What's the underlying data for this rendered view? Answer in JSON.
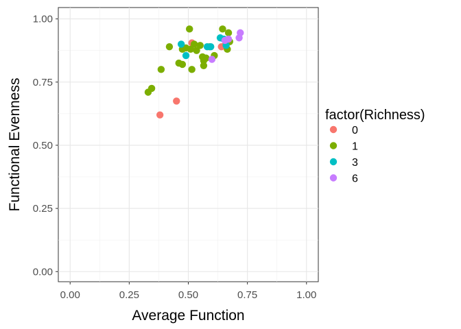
{
  "chart_data": {
    "type": "scatter",
    "xlabel": "Average Function",
    "ylabel": "Functional Evenness",
    "xlim": [
      -0.05,
      1.05
    ],
    "ylim": [
      -0.04,
      1.045
    ],
    "x_ticks": [
      0.0,
      0.25,
      0.5,
      0.75,
      1.0
    ],
    "x_tick_labels": [
      "0.00",
      "0.25",
      "0.50",
      "0.75",
      "1.00"
    ],
    "y_ticks": [
      0.0,
      0.25,
      0.5,
      0.75,
      1.0
    ],
    "y_tick_labels": [
      "0.00",
      "0.25",
      "0.50",
      "0.75",
      "1.00"
    ],
    "grid": true,
    "legend": {
      "title": "factor(Richness)",
      "placement": "right",
      "entries": [
        {
          "label": "0",
          "color": "#F8766D"
        },
        {
          "label": "1",
          "color": "#7CAE00"
        },
        {
          "label": "3",
          "color": "#00BFC4"
        },
        {
          "label": "6",
          "color": "#C77CFF"
        }
      ]
    },
    "series": [
      {
        "name": "0",
        "color": "#F8766D",
        "points": [
          [
            0.38,
            0.62
          ],
          [
            0.45,
            0.675
          ],
          [
            0.515,
            0.905
          ],
          [
            0.64,
            0.89
          ]
        ]
      },
      {
        "name": "1",
        "color": "#7CAE00",
        "points": [
          [
            0.33,
            0.71
          ],
          [
            0.345,
            0.725
          ],
          [
            0.385,
            0.8
          ],
          [
            0.42,
            0.89
          ],
          [
            0.46,
            0.825
          ],
          [
            0.475,
            0.82
          ],
          [
            0.475,
            0.88
          ],
          [
            0.49,
            0.885
          ],
          [
            0.505,
            0.96
          ],
          [
            0.51,
            0.88
          ],
          [
            0.515,
            0.8
          ],
          [
            0.525,
            0.9
          ],
          [
            0.535,
            0.875
          ],
          [
            0.55,
            0.895
          ],
          [
            0.56,
            0.85
          ],
          [
            0.565,
            0.835
          ],
          [
            0.565,
            0.815
          ],
          [
            0.575,
            0.845
          ],
          [
            0.59,
            0.89
          ],
          [
            0.61,
            0.855
          ],
          [
            0.645,
            0.96
          ],
          [
            0.66,
            0.905
          ],
          [
            0.665,
            0.88
          ],
          [
            0.67,
            0.945
          ],
          [
            0.675,
            0.91
          ]
        ]
      },
      {
        "name": "3",
        "color": "#00BFC4",
        "points": [
          [
            0.47,
            0.9
          ],
          [
            0.49,
            0.855
          ],
          [
            0.58,
            0.89
          ],
          [
            0.595,
            0.89
          ],
          [
            0.635,
            0.925
          ],
          [
            0.65,
            0.92
          ],
          [
            0.66,
            0.895
          ]
        ]
      },
      {
        "name": "6",
        "color": "#C77CFF",
        "points": [
          [
            0.6,
            0.84
          ],
          [
            0.655,
            0.915
          ],
          [
            0.67,
            0.92
          ],
          [
            0.715,
            0.925
          ],
          [
            0.72,
            0.945
          ]
        ]
      }
    ]
  }
}
